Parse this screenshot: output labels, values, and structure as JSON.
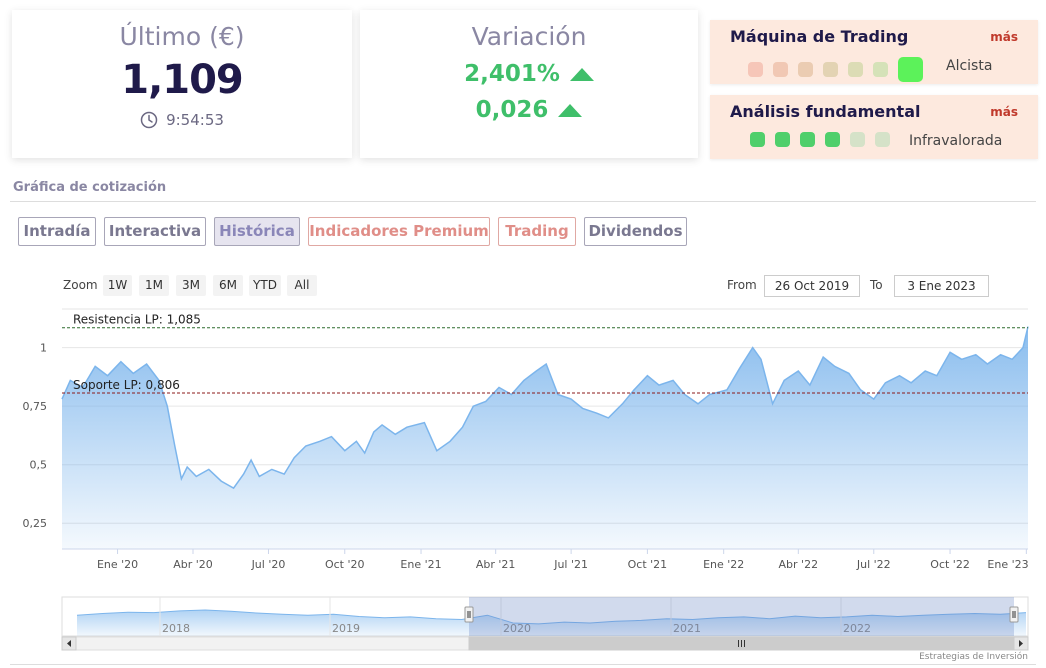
{
  "last": {
    "title": "Último (€)",
    "price": "1,109",
    "time": "9:54:53"
  },
  "variation": {
    "title": "Variación",
    "percent": "2,401%",
    "absolute": "0,026"
  },
  "trading_machine": {
    "title": "Máquina de Trading",
    "more": "más",
    "status": "Alcista",
    "colors": [
      "#f6c6b8",
      "#f1c8b4",
      "#ebccb2",
      "#e3d3b3",
      "#dcdcb5",
      "#d5e2b8",
      "#5cf25a"
    ],
    "active_index": 6
  },
  "fundamental": {
    "title": "Análisis fundamental",
    "more": "más",
    "status": "Infravalorada",
    "colors": [
      "#4fcf6b",
      "#4fcf6b",
      "#4fcf6b",
      "#4fcf6b",
      "#d5e2c8",
      "#d5e2c8"
    ]
  },
  "section_title": "Gráfica de cotización",
  "tabs": [
    {
      "label": "Intradía",
      "style": "normal"
    },
    {
      "label": "Interactiva",
      "style": "normal"
    },
    {
      "label": "Histórica",
      "style": "active"
    },
    {
      "label": "Indicadores Premium",
      "style": "red"
    },
    {
      "label": "Trading",
      "style": "red"
    },
    {
      "label": "Dividendos",
      "style": "normal"
    }
  ],
  "range_selector": {
    "zoom_label": "Zoom",
    "buttons": [
      "1W",
      "1M",
      "3M",
      "6M",
      "YTD",
      "All"
    ],
    "from_label": "From",
    "from_value": "26 Oct 2019",
    "to_label": "To",
    "to_value": "3 Ene 2023"
  },
  "credits": "Estrategias de Inversión",
  "chart_data": {
    "type": "area",
    "color": "#7cb5ec",
    "y_ticks": [
      {
        "value": 1,
        "label": "1"
      },
      {
        "value": 0.75,
        "label": "0,75"
      },
      {
        "value": 0.5,
        "label": "0,5"
      },
      {
        "value": 0.25,
        "label": "0,25"
      }
    ],
    "x_labels": [
      {
        "date": "2020-01-01",
        "label": "Ene '20"
      },
      {
        "date": "2020-04-01",
        "label": "Abr '20"
      },
      {
        "date": "2020-07-01",
        "label": "Jul '20"
      },
      {
        "date": "2020-10-01",
        "label": "Oct '20"
      },
      {
        "date": "2021-01-01",
        "label": "Ene '21"
      },
      {
        "date": "2021-04-01",
        "label": "Abr '21"
      },
      {
        "date": "2021-07-01",
        "label": "Jul '21"
      },
      {
        "date": "2021-10-01",
        "label": "Oct '21"
      },
      {
        "date": "2022-01-01",
        "label": "Ene '22"
      },
      {
        "date": "2022-04-01",
        "label": "Abr '22"
      },
      {
        "date": "2022-07-01",
        "label": "Jul '22"
      },
      {
        "date": "2022-10-01",
        "label": "Oct '22"
      },
      {
        "date": "2023-01-01",
        "label": "Ene '23"
      }
    ],
    "x_range": [
      "2019-10-26",
      "2023-01-03"
    ],
    "lines": [
      {
        "label": "Resistencia LP: 1,085",
        "value": 1.085
      },
      {
        "label": "Soporte LP: 0,806",
        "value": 0.806
      }
    ],
    "series": [
      {
        "x": "2019-10-26",
        "y": 0.78
      },
      {
        "x": "2019-11-05",
        "y": 0.86
      },
      {
        "x": "2019-11-20",
        "y": 0.83
      },
      {
        "x": "2019-12-05",
        "y": 0.92
      },
      {
        "x": "2019-12-20",
        "y": 0.88
      },
      {
        "x": "2020-01-05",
        "y": 0.94
      },
      {
        "x": "2020-01-20",
        "y": 0.89
      },
      {
        "x": "2020-02-05",
        "y": 0.93
      },
      {
        "x": "2020-02-20",
        "y": 0.86
      },
      {
        "x": "2020-03-01",
        "y": 0.75
      },
      {
        "x": "2020-03-10",
        "y": 0.58
      },
      {
        "x": "2020-03-18",
        "y": 0.44
      },
      {
        "x": "2020-03-25",
        "y": 0.49
      },
      {
        "x": "2020-04-05",
        "y": 0.45
      },
      {
        "x": "2020-04-20",
        "y": 0.48
      },
      {
        "x": "2020-05-05",
        "y": 0.43
      },
      {
        "x": "2020-05-20",
        "y": 0.4
      },
      {
        "x": "2020-06-01",
        "y": 0.46
      },
      {
        "x": "2020-06-10",
        "y": 0.52
      },
      {
        "x": "2020-06-20",
        "y": 0.45
      },
      {
        "x": "2020-07-05",
        "y": 0.48
      },
      {
        "x": "2020-07-20",
        "y": 0.46
      },
      {
        "x": "2020-08-01",
        "y": 0.53
      },
      {
        "x": "2020-08-15",
        "y": 0.58
      },
      {
        "x": "2020-09-01",
        "y": 0.6
      },
      {
        "x": "2020-09-15",
        "y": 0.62
      },
      {
        "x": "2020-10-01",
        "y": 0.56
      },
      {
        "x": "2020-10-15",
        "y": 0.6
      },
      {
        "x": "2020-10-25",
        "y": 0.55
      },
      {
        "x": "2020-11-05",
        "y": 0.64
      },
      {
        "x": "2020-11-15",
        "y": 0.67
      },
      {
        "x": "2020-12-01",
        "y": 0.63
      },
      {
        "x": "2020-12-15",
        "y": 0.66
      },
      {
        "x": "2021-01-05",
        "y": 0.68
      },
      {
        "x": "2021-01-20",
        "y": 0.56
      },
      {
        "x": "2021-02-05",
        "y": 0.6
      },
      {
        "x": "2021-02-20",
        "y": 0.66
      },
      {
        "x": "2021-03-05",
        "y": 0.75
      },
      {
        "x": "2021-03-20",
        "y": 0.77
      },
      {
        "x": "2021-04-05",
        "y": 0.83
      },
      {
        "x": "2021-04-20",
        "y": 0.8
      },
      {
        "x": "2021-05-05",
        "y": 0.86
      },
      {
        "x": "2021-05-20",
        "y": 0.9
      },
      {
        "x": "2021-06-01",
        "y": 0.93
      },
      {
        "x": "2021-06-15",
        "y": 0.8
      },
      {
        "x": "2021-07-01",
        "y": 0.78
      },
      {
        "x": "2021-07-15",
        "y": 0.74
      },
      {
        "x": "2021-08-01",
        "y": 0.72
      },
      {
        "x": "2021-08-15",
        "y": 0.7
      },
      {
        "x": "2021-09-01",
        "y": 0.76
      },
      {
        "x": "2021-09-15",
        "y": 0.82
      },
      {
        "x": "2021-10-01",
        "y": 0.88
      },
      {
        "x": "2021-10-15",
        "y": 0.84
      },
      {
        "x": "2021-11-01",
        "y": 0.86
      },
      {
        "x": "2021-11-15",
        "y": 0.8
      },
      {
        "x": "2021-12-01",
        "y": 0.76
      },
      {
        "x": "2021-12-15",
        "y": 0.8
      },
      {
        "x": "2022-01-05",
        "y": 0.82
      },
      {
        "x": "2022-01-20",
        "y": 0.91
      },
      {
        "x": "2022-02-05",
        "y": 1.0
      },
      {
        "x": "2022-02-15",
        "y": 0.95
      },
      {
        "x": "2022-03-01",
        "y": 0.76
      },
      {
        "x": "2022-03-15",
        "y": 0.86
      },
      {
        "x": "2022-04-01",
        "y": 0.9
      },
      {
        "x": "2022-04-15",
        "y": 0.84
      },
      {
        "x": "2022-05-01",
        "y": 0.96
      },
      {
        "x": "2022-05-15",
        "y": 0.92
      },
      {
        "x": "2022-06-01",
        "y": 0.89
      },
      {
        "x": "2022-06-15",
        "y": 0.82
      },
      {
        "x": "2022-07-01",
        "y": 0.78
      },
      {
        "x": "2022-07-15",
        "y": 0.85
      },
      {
        "x": "2022-08-01",
        "y": 0.88
      },
      {
        "x": "2022-08-15",
        "y": 0.85
      },
      {
        "x": "2022-09-01",
        "y": 0.9
      },
      {
        "x": "2022-09-15",
        "y": 0.88
      },
      {
        "x": "2022-10-01",
        "y": 0.98
      },
      {
        "x": "2022-10-15",
        "y": 0.95
      },
      {
        "x": "2022-11-01",
        "y": 0.97
      },
      {
        "x": "2022-11-15",
        "y": 0.93
      },
      {
        "x": "2022-12-01",
        "y": 0.97
      },
      {
        "x": "2022-12-15",
        "y": 0.95
      },
      {
        "x": "2022-12-28",
        "y": 1.0
      },
      {
        "x": "2023-01-03",
        "y": 1.09
      }
    ],
    "navigator": {
      "x_labels": [
        "2018",
        "2019",
        "2020",
        "2021",
        "2022"
      ]
    }
  }
}
